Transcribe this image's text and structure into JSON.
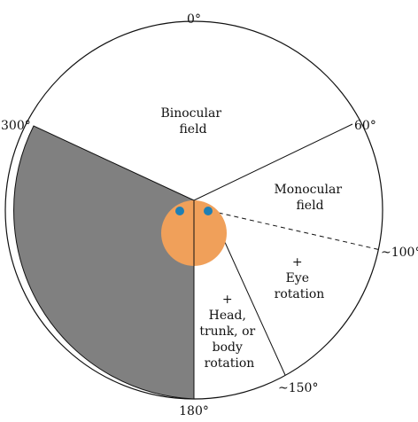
{
  "diagram": {
    "degree_labels": {
      "deg_0": "0°",
      "deg_60": "60°",
      "deg_100": "~100°",
      "deg_150": "~150°",
      "deg_180": "180°",
      "deg_300": "300°"
    },
    "regions": {
      "binocular": [
        "Binocular",
        "field"
      ],
      "monocular": [
        "Monocular",
        "field"
      ],
      "eye_rotation": [
        "+",
        "Eye",
        "rotation"
      ],
      "head_rotation": [
        "+",
        "Head,",
        "trunk, or",
        "body",
        "rotation"
      ]
    },
    "colors": {
      "blind_sector": "#808080",
      "head": "#f0a05a",
      "eyes": "#1f7fb4",
      "outline": "#111111",
      "background": "#ffffff"
    }
  }
}
